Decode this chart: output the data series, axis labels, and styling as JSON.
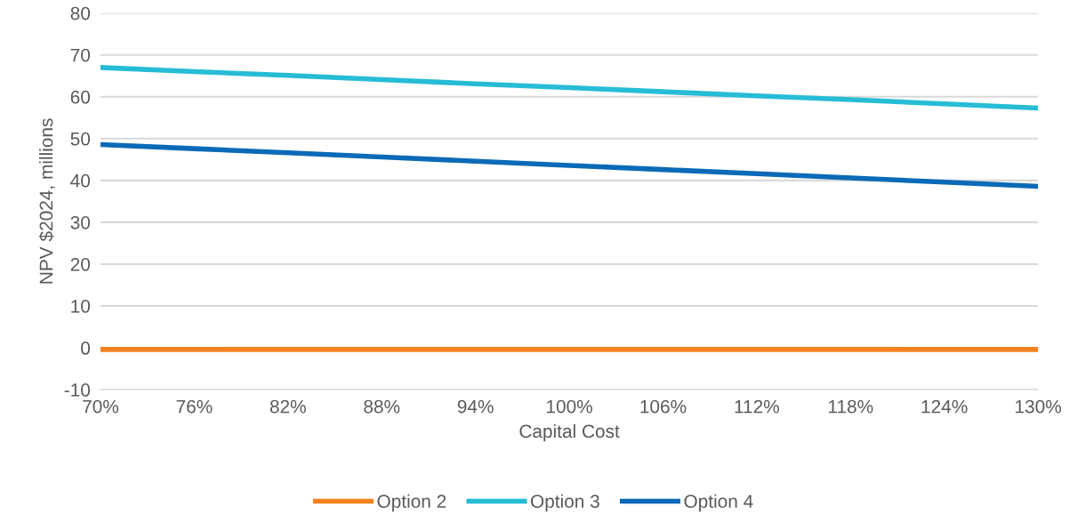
{
  "chart_data": {
    "type": "line",
    "xlabel": "Capital Cost",
    "ylabel": "NPV $2024, millions",
    "x": [
      70,
      76,
      82,
      88,
      94,
      100,
      106,
      112,
      118,
      124,
      130
    ],
    "series": [
      {
        "name": "Option 2",
        "color": "#f5821f",
        "values": [
          -0.4,
          -0.4,
          -0.4,
          -0.4,
          -0.4,
          -0.4,
          -0.4,
          -0.4,
          -0.4,
          -0.4,
          -0.4
        ]
      },
      {
        "name": "Option 3",
        "color": "#27bcd6",
        "values": [
          67.0,
          66.0,
          65.1,
          64.1,
          63.1,
          62.2,
          61.2,
          60.2,
          59.3,
          58.3,
          57.3
        ]
      },
      {
        "name": "Option 4",
        "color": "#0b6ab7",
        "values": [
          48.6,
          47.6,
          46.6,
          45.6,
          44.6,
          43.6,
          42.6,
          41.6,
          40.6,
          39.6,
          38.6
        ]
      }
    ],
    "xlim": [
      70,
      130
    ],
    "xticks": [
      {
        "value": 70,
        "label": "70%"
      },
      {
        "value": 76,
        "label": "76%"
      },
      {
        "value": 82,
        "label": "82%"
      },
      {
        "value": 88,
        "label": "88%"
      },
      {
        "value": 94,
        "label": "94%"
      },
      {
        "value": 100,
        "label": "100%"
      },
      {
        "value": 106,
        "label": "106%"
      },
      {
        "value": 112,
        "label": "112%"
      },
      {
        "value": 118,
        "label": "118%"
      },
      {
        "value": 124,
        "label": "124%"
      },
      {
        "value": 130,
        "label": "130%"
      }
    ],
    "ylim": [
      -10,
      80
    ],
    "yticks": [
      -10,
      0,
      10,
      20,
      30,
      40,
      50,
      60,
      70,
      80
    ],
    "grid": "y",
    "legend": "bottom"
  }
}
